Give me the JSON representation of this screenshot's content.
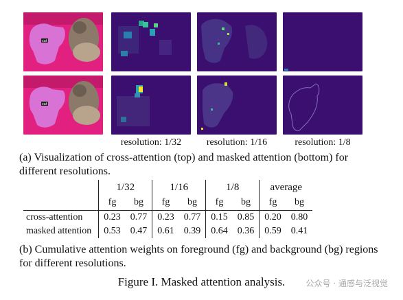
{
  "panel_a": {
    "resolution_labels": [
      "resolution: 1/32",
      "resolution: 1/16",
      "resolution: 1/8"
    ],
    "caption": "(a) Visualization of cross-attention (top) and masked attention (bottom) for different resolutions."
  },
  "panel_b": {
    "table": {
      "groups": [
        "1/32",
        "1/16",
        "1/8",
        "average"
      ],
      "subheaders": [
        "fg",
        "bg",
        "fg",
        "bg",
        "fg",
        "bg",
        "fg",
        "bg"
      ],
      "rows": [
        {
          "label": "cross-attention",
          "values": [
            "0.23",
            "0.77",
            "0.23",
            "0.77",
            "0.15",
            "0.85",
            "0.20",
            "0.80"
          ]
        },
        {
          "label": "masked attention",
          "values": [
            "0.53",
            "0.47",
            "0.61",
            "0.39",
            "0.64",
            "0.36",
            "0.59",
            "0.41"
          ]
        }
      ]
    },
    "caption": "(b) Cumulative attention weights on foreground (fg) and background (bg) regions for different resolutions."
  },
  "figure_title": "Figure I. Masked attention analysis.",
  "watermark": "公众号 · 通感与泛视觉",
  "colors": {
    "heatmap_bg": "#3b0f70",
    "heatmap_mid": "#2a7fb0",
    "heatmap_hot": "#f6e620",
    "pink_bg": "#e0217f",
    "mask_overlay": "#d77bdc"
  }
}
